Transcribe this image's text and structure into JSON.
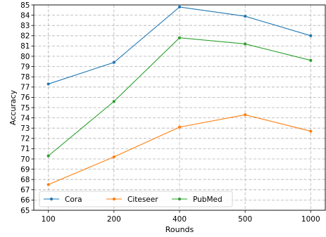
{
  "chart_data": {
    "type": "line",
    "title": "",
    "xlabel": "Rounds",
    "ylabel": "Accuracy",
    "categories": [
      "100",
      "200",
      "400",
      "500",
      "1000"
    ],
    "ylim": [
      65,
      85
    ],
    "yticks": [
      65,
      66,
      67,
      68,
      69,
      70,
      71,
      72,
      73,
      74,
      75,
      76,
      77,
      78,
      79,
      80,
      81,
      82,
      83,
      84,
      85
    ],
    "grid": true,
    "legend_position": "bottom-left",
    "series": [
      {
        "name": "Cora",
        "color": "#1f77b4",
        "values": [
          77.3,
          79.4,
          84.8,
          83.9,
          82.0
        ]
      },
      {
        "name": "Citeseer",
        "color": "#ff7f0e",
        "values": [
          67.5,
          70.2,
          73.1,
          74.3,
          72.7
        ]
      },
      {
        "name": "PubMed",
        "color": "#2ca02c",
        "values": [
          70.3,
          75.6,
          81.8,
          81.2,
          79.6
        ]
      }
    ]
  }
}
